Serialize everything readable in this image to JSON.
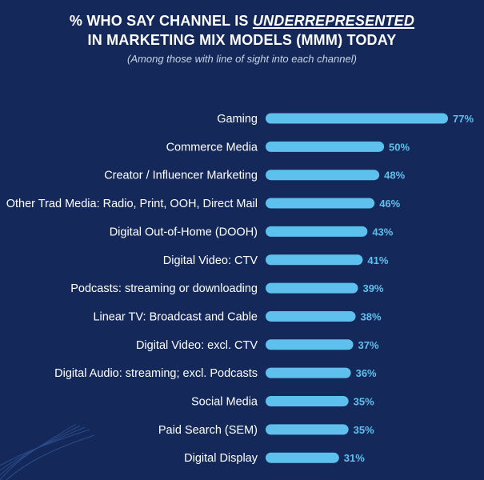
{
  "header": {
    "title_prefix": "% WHO SAY CHANNEL IS",
    "title_emphasis": "UNDERREPRESENTED",
    "title_line2": "IN MARKETING MIX MODELS (MMM) TODAY",
    "subtitle": "(Among those with line of sight into each channel)"
  },
  "colors": {
    "background": "#14295a",
    "bar": "#5ec0ec",
    "value_label": "#5ec0ec",
    "text": "#ffffff"
  },
  "chart_data": {
    "type": "bar",
    "orientation": "horizontal",
    "categories": [
      "Gaming",
      "Commerce Media",
      "Creator / Influencer Marketing",
      "Other Trad Media: Radio, Print, OOH, Direct Mail",
      "Digital Out-of-Home (DOOH)",
      "Digital Video: CTV",
      "Podcasts: streaming or downloading",
      "Linear TV: Broadcast and Cable",
      "Digital Video: excl. CTV",
      "Digital Audio: streaming; excl. Podcasts",
      "Social Media",
      "Paid Search (SEM)",
      "Digital Display"
    ],
    "values": [
      77,
      50,
      48,
      46,
      43,
      41,
      39,
      38,
      37,
      36,
      35,
      35,
      31
    ],
    "value_labels": [
      "77%",
      "50%",
      "48%",
      "46%",
      "43%",
      "41%",
      "39%",
      "38%",
      "37%",
      "36%",
      "35%",
      "35%",
      "31%"
    ],
    "unit": "%",
    "xlim": [
      0,
      77
    ],
    "grid": false,
    "legend": "none"
  }
}
